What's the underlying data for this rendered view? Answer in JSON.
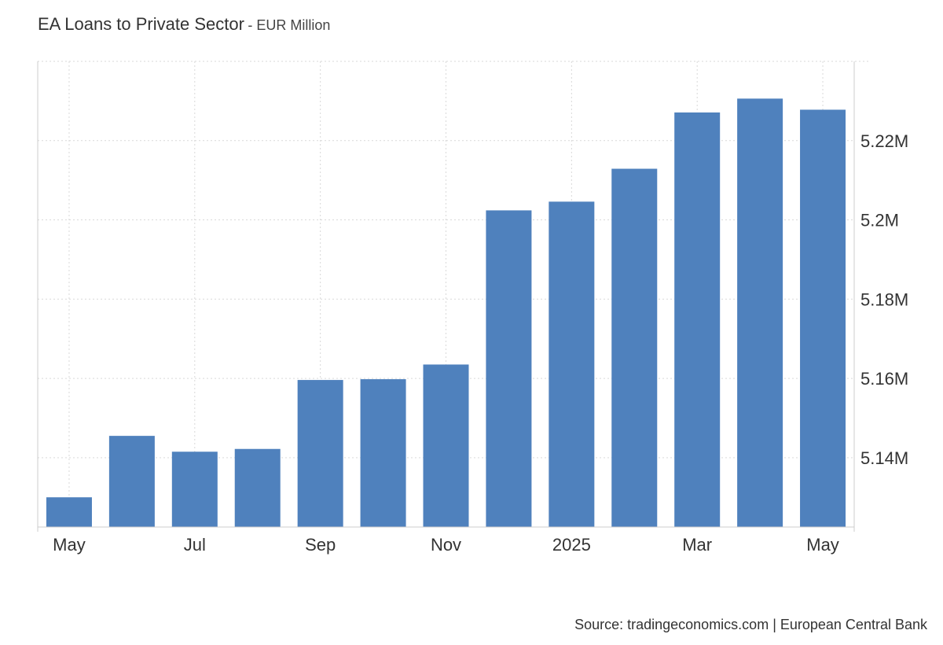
{
  "header": {
    "title": "EA Loans to Private Sector",
    "subtitle": "EUR Million"
  },
  "footer": {
    "source": "Source: tradingeconomics.com | European Central Bank"
  },
  "colors": {
    "bar": "#4f81bd",
    "grid": "#d9d9d9",
    "axis": "#cccccc"
  },
  "chart_data": {
    "type": "bar",
    "title": "EA Loans to Private Sector",
    "subtitle": "EUR Million",
    "categories": [
      "2024-05",
      "2024-06",
      "2024-07",
      "2024-08",
      "2024-09",
      "2024-10",
      "2024-11",
      "2024-12",
      "2025-01",
      "2025-02",
      "2025-03",
      "2025-04",
      "2025-05"
    ],
    "values": [
      5130000,
      5145500,
      5141500,
      5142200,
      5159600,
      5159800,
      5163500,
      5202400,
      5204600,
      5212900,
      5227100,
      5230600,
      5227800
    ],
    "ylim": [
      5122500,
      5240000
    ],
    "y_ticks": [
      5140000,
      5160000,
      5180000,
      5200000,
      5220000
    ],
    "y_tick_labels": [
      "5.14M",
      "5.16M",
      "5.18M",
      "5.2M",
      "5.22M"
    ],
    "x_tick_labels": [
      {
        "category": "2024-05",
        "label": "May"
      },
      {
        "category": "2024-07",
        "label": "Jul"
      },
      {
        "category": "2024-09",
        "label": "Sep"
      },
      {
        "category": "2024-11",
        "label": "Nov"
      },
      {
        "category": "2025-01",
        "label": "2025"
      },
      {
        "category": "2025-03",
        "label": "Mar"
      },
      {
        "category": "2025-05",
        "label": "May"
      }
    ],
    "grid": true,
    "yaxis_position": "right",
    "legend": "none"
  }
}
